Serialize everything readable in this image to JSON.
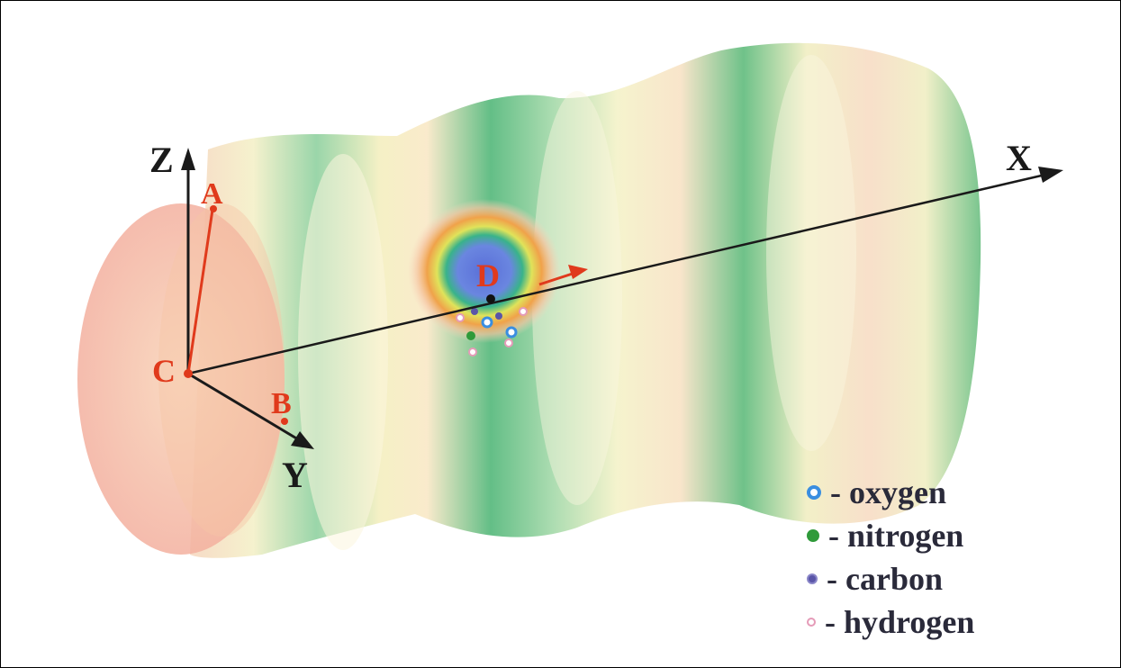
{
  "axes": {
    "x_label": "X",
    "y_label": "Y",
    "z_label": "Z"
  },
  "points": {
    "a": "A",
    "b": "B",
    "c": "C",
    "d": "D"
  },
  "legend": [
    {
      "symbol_color": "#3a8ee0",
      "label": "- oxygen"
    },
    {
      "symbol_color": "#2f9a3a",
      "label": "- nitrogen"
    },
    {
      "symbol_color": "#5a55a8",
      "label": "- carbon"
    },
    {
      "symbol_color": "#e59bb8",
      "label": "- hydrogen"
    }
  ],
  "colors": {
    "axis": "#1a1a1a",
    "point_label": "#e03a1c",
    "cylinder_green": "#3fb06a",
    "cylinder_yellow": "#f3efb0",
    "cylinder_orange": "#f6c1a0",
    "end_cap": "#f3b6a3"
  }
}
